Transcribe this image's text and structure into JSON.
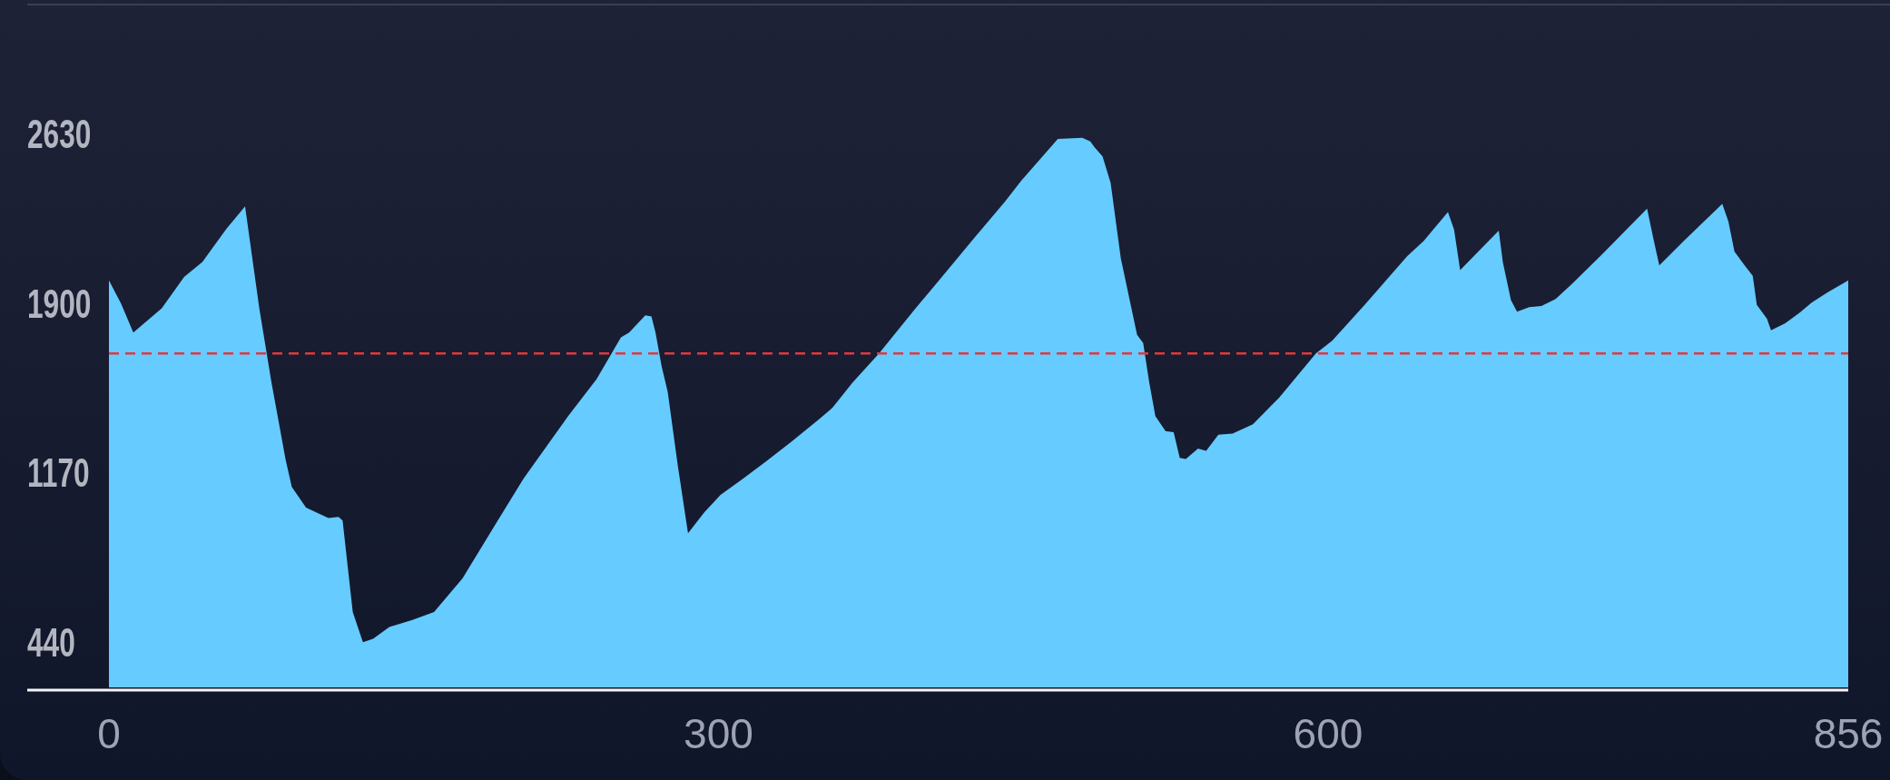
{
  "chart_data": {
    "type": "area",
    "x": [
      0,
      6,
      12,
      18,
      26,
      37,
      46,
      58,
      67,
      74,
      80,
      87,
      90,
      97,
      108,
      113,
      115,
      120,
      125,
      130,
      138,
      149,
      160,
      174,
      190,
      204,
      226,
      240,
      252,
      256,
      264,
      267,
      269,
      272,
      275,
      280,
      285,
      293,
      301,
      312,
      322,
      336,
      350,
      356,
      366,
      379,
      397,
      409,
      427,
      441,
      449,
      467,
      479,
      483,
      485,
      489,
      493,
      498,
      506,
      509,
      512,
      515,
      520,
      524,
      527,
      530,
      536,
      540,
      546,
      553,
      563,
      572,
      576,
      594,
      602,
      618,
      639,
      647,
      659,
      662,
      665,
      684,
      686,
      690,
      693,
      699,
      705,
      712,
      720,
      734,
      757,
      760,
      763,
      775,
      794,
      797,
      800,
      805,
      809,
      811,
      816,
      818,
      825,
      832,
      838,
      846,
      856
    ],
    "values": [
      2000,
      1900,
      1775,
      1820,
      1880,
      2015,
      2080,
      2225,
      2320,
      1880,
      1560,
      1225,
      1110,
      1020,
      975,
      980,
      965,
      570,
      440,
      455,
      505,
      535,
      570,
      715,
      945,
      1145,
      1415,
      1575,
      1755,
      1775,
      1850,
      1845,
      1775,
      1630,
      1520,
      1200,
      910,
      1000,
      1075,
      1145,
      1210,
      1305,
      1405,
      1450,
      1560,
      1685,
      1880,
      2005,
      2195,
      2340,
      2430,
      2610,
      2615,
      2600,
      2575,
      2535,
      2420,
      2095,
      1765,
      1730,
      1560,
      1415,
      1350,
      1345,
      1235,
      1230,
      1275,
      1265,
      1335,
      1340,
      1380,
      1460,
      1495,
      1685,
      1740,
      1895,
      2105,
      2170,
      2295,
      2220,
      2045,
      2215,
      2080,
      1915,
      1865,
      1885,
      1890,
      1920,
      1985,
      2105,
      2310,
      2185,
      2065,
      2170,
      2330,
      2255,
      2125,
      2065,
      2020,
      1895,
      1835,
      1785,
      1815,
      1860,
      1905,
      1950,
      2000
    ],
    "color": "#66cbff",
    "xlim": [
      0,
      856
    ],
    "xticks": [
      0,
      300,
      600,
      856
    ],
    "ylim": [
      245,
      2630
    ],
    "yticks": [
      440,
      1170,
      1900,
      2630
    ],
    "ref_lines": [
      {
        "axis": "y",
        "value": 1685,
        "color": "#e0393e",
        "line_style": "dashed"
      }
    ]
  }
}
